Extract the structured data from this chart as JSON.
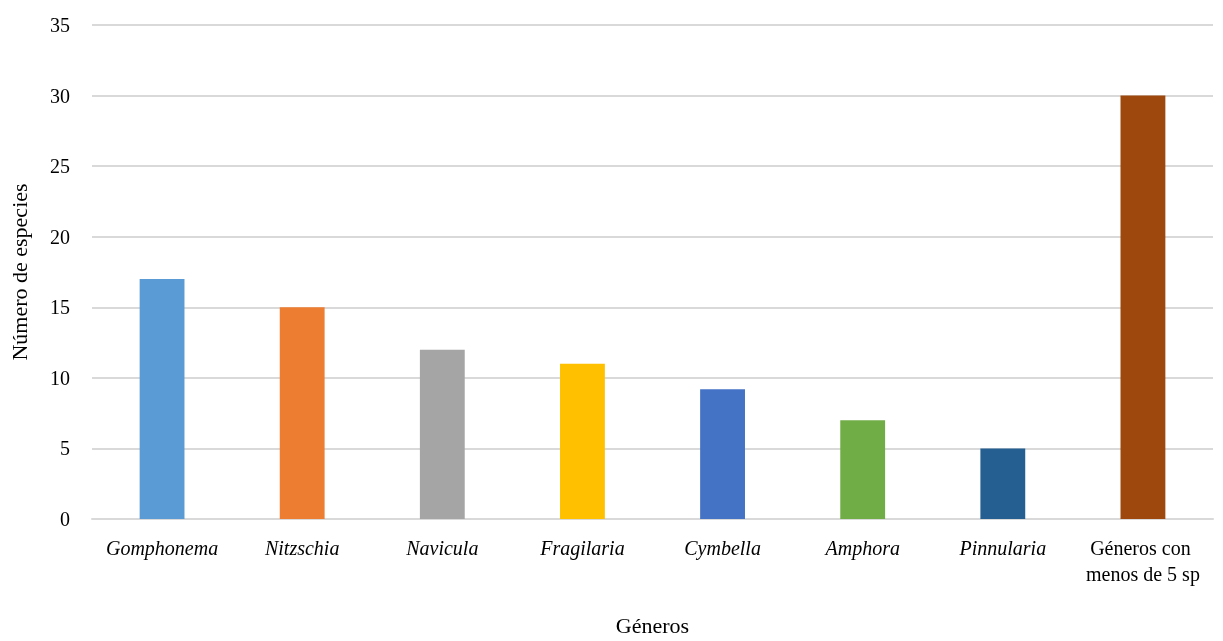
{
  "chart_data": {
    "type": "bar",
    "xlabel": "Géneros",
    "ylabel": "Número de especies",
    "categories": [
      "Gomphonema",
      "Nitzschia",
      "Navicula",
      "Fragilaria",
      "Cymbella",
      "Amphora",
      "Pinnularia",
      "Géneros con menos de 5 sp"
    ],
    "values": [
      17,
      15,
      12,
      11,
      9.2,
      7,
      5,
      30
    ],
    "colors": [
      "#5b9bd5",
      "#ed7d31",
      "#a5a5a5",
      "#ffc000",
      "#4472c4",
      "#70ad47",
      "#255e91",
      "#9e480e"
    ],
    "ylim": [
      0,
      35
    ],
    "yticks": [
      0,
      5,
      10,
      15,
      20,
      25,
      30,
      35
    ],
    "grid": "y"
  }
}
